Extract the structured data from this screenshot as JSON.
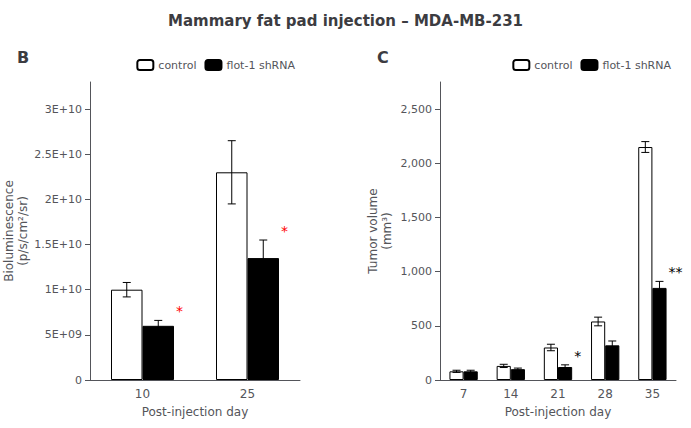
{
  "title": "Mammary fat pad injection – MDA-MB-231",
  "chart_data": [
    {
      "type": "bar",
      "title": "B",
      "categories": [
        "10",
        "25"
      ],
      "series": [
        {
          "name": "control",
          "color": "white",
          "values": [
            10000000000.0,
            23000000000.0
          ],
          "errors": [
            800000000.0,
            3500000000.0
          ]
        },
        {
          "name": "flot-1 shRNA",
          "color": "black",
          "values": [
            6000000000.0,
            13500000000.0
          ],
          "errors": [
            600000000.0,
            2000000000.0
          ]
        }
      ],
      "xlabel": "Post-injection day",
      "ylabel": "Bioluminescence\n(p/s/cm²/sr)",
      "ylim": [
        0,
        33000000000.0
      ],
      "yticks": [
        0,
        {
          "value": 5000000000.0,
          "label": "5E+09"
        },
        {
          "value": 10000000000.0,
          "label": "1E+10"
        },
        {
          "value": 15000000000.0,
          "label": "1.5E+10"
        },
        {
          "value": 20000000000.0,
          "label": "2E+10"
        },
        {
          "value": 25000000000.0,
          "label": "2.5E+10"
        },
        {
          "value": 30000000000.0,
          "label": "3E+10"
        }
      ],
      "annotations": [
        {
          "text": "*",
          "category": "10",
          "series": "flot-1 shRNA",
          "color": "red"
        },
        {
          "text": "*",
          "category": "25",
          "series": "flot-1 shRNA",
          "color": "red"
        }
      ],
      "legend": "upper right",
      "grid": false
    },
    {
      "type": "bar",
      "title": "C",
      "categories": [
        "7",
        "14",
        "21",
        "28",
        "35"
      ],
      "series": [
        {
          "name": "control",
          "color": "white",
          "values": [
            80,
            130,
            300,
            540,
            2150
          ],
          "errors": [
            10,
            15,
            30,
            40,
            50
          ]
        },
        {
          "name": "flot-1 shRNA",
          "color": "black",
          "values": [
            80,
            100,
            120,
            320,
            850
          ],
          "errors": [
            10,
            10,
            20,
            40,
            60
          ]
        }
      ],
      "xlabel": "Post-injection day",
      "ylabel": "Tumor volume\n(mm³)",
      "ylim": [
        0,
        2750
      ],
      "yticks": [
        0,
        500,
        {
          "value": 1000,
          "label": "1,000"
        },
        {
          "value": 1500,
          "label": "1,500"
        },
        {
          "value": 2000,
          "label": "2,000"
        },
        {
          "value": 2500,
          "label": "2,500"
        }
      ],
      "annotations": [
        {
          "text": "*",
          "category": "21",
          "series": "flot-1 shRNA",
          "color": "black"
        },
        {
          "text": "**",
          "category": "35",
          "series": "flot-1 shRNA",
          "color": "black"
        }
      ],
      "legend": "upper right",
      "grid": false
    }
  ]
}
